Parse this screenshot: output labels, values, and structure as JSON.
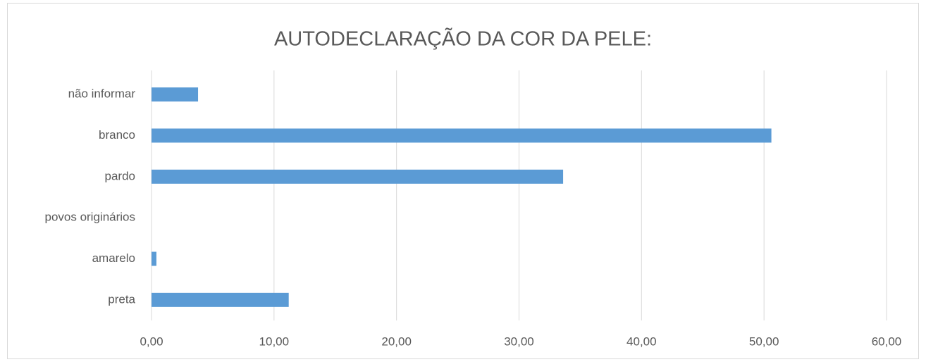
{
  "chart_data": {
    "type": "barh",
    "title": "AUTODECLARAÇÃO DA COR DA PELE:",
    "categories": [
      "preta",
      "amarelo",
      "povos originários",
      "pardo",
      "branco",
      "não informar"
    ],
    "values": [
      11.2,
      0.4,
      0,
      33.6,
      50.6,
      3.8
    ],
    "color": "#5b9bd5",
    "xlim": [
      0,
      60
    ],
    "xticks": [
      {
        "value": 0,
        "label": "0,00"
      },
      {
        "value": 10,
        "label": "10,00"
      },
      {
        "value": 20,
        "label": "20,00"
      },
      {
        "value": 30,
        "label": "30,00"
      },
      {
        "value": 40,
        "label": "40,00"
      },
      {
        "value": 50,
        "label": "50,00"
      },
      {
        "value": 60,
        "label": "60,00"
      }
    ],
    "grid": true
  }
}
